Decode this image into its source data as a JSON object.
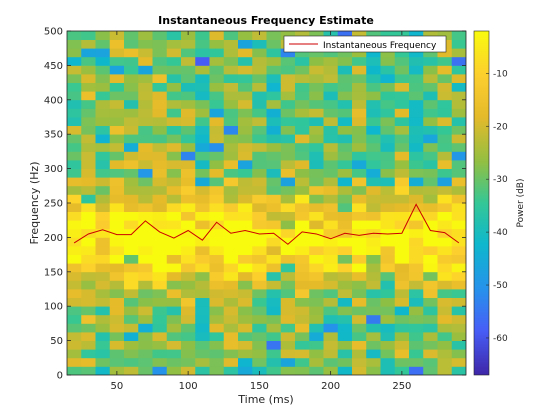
{
  "chart_data": {
    "type": "heatmap",
    "title": "Instantaneous Frequency Estimate",
    "xlabel": "Time (ms)",
    "ylabel": "Frequency (Hz)",
    "xlim": [
      15,
      295
    ],
    "ylim": [
      0,
      500
    ],
    "x_ticks": [
      50,
      100,
      150,
      200,
      250
    ],
    "y_ticks": [
      0,
      50,
      100,
      150,
      200,
      250,
      300,
      350,
      400,
      450,
      500
    ],
    "colorbar": {
      "label": "Power (dB)",
      "range": [
        -67,
        -2
      ],
      "ticks": [
        -60,
        -50,
        -40,
        -30,
        -20,
        -10
      ]
    },
    "legend": {
      "placement": "top-right",
      "entries": [
        "Instantaneous Frequency"
      ]
    },
    "series": [
      {
        "name": "Instantaneous Frequency",
        "color": "#cc0000",
        "x": [
          20,
          30,
          40,
          50,
          60,
          70,
          80,
          90,
          100,
          110,
          120,
          130,
          140,
          150,
          160,
          170,
          180,
          190,
          200,
          210,
          220,
          230,
          240,
          250,
          260,
          270,
          280,
          290
        ],
        "y": [
          192,
          205,
          211,
          204,
          204,
          224,
          208,
          199,
          210,
          196,
          222,
          206,
          210,
          205,
          206,
          190,
          208,
          205,
          198,
          206,
          203,
          206,
          205,
          206,
          248,
          210,
          207,
          192
        ]
      }
    ],
    "heatmap": {
      "x_start": 15,
      "x_step": 10,
      "columns": 28,
      "y_step": 12.5,
      "rows": 40,
      "band_center_hz": 200,
      "band_width_hz": 60
    }
  }
}
